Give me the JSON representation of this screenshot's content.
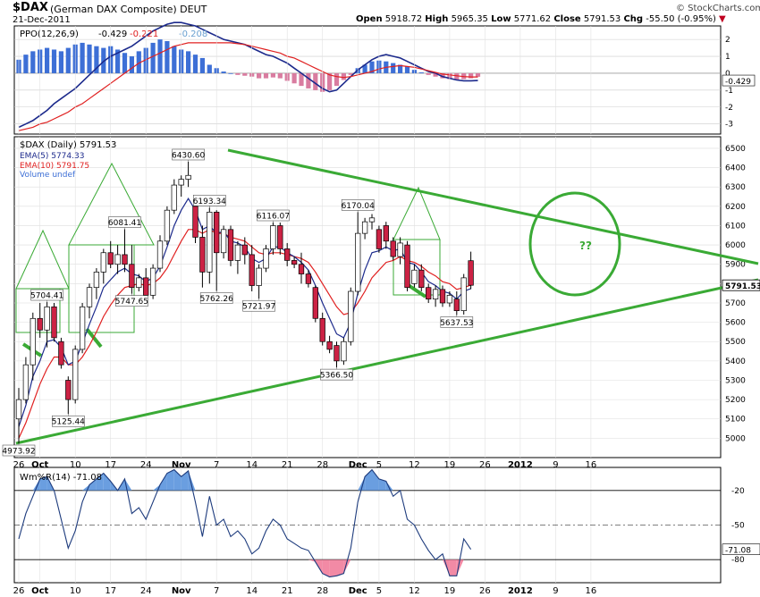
{
  "header": {
    "symbol": "$DAX",
    "name": "(German DAX Composite)",
    "exchange": "DEUT",
    "date": "21-Dec-2011",
    "brand": "© StockCharts.com",
    "open_label": "Open",
    "open": "5918.72",
    "high_label": "High",
    "high": "5965.35",
    "low_label": "Low",
    "low": "5771.62",
    "close_label": "Close",
    "close": "5791.53",
    "chg_label": "Chg",
    "chg": "-55.50 (-0.95%)"
  },
  "colors": {
    "up": "#ffffff",
    "down": "#cc2244",
    "ema5": "#1c2a8c",
    "ema10": "#e02020",
    "trend": "#3aaa35",
    "ppo_pos": "#3d6fd6",
    "ppo_neg": "#d97ca0",
    "will_pos": "#6a9ee0",
    "will_neg": "#f28aa5"
  },
  "chart_data": [
    {
      "type": "bar",
      "panel": "ppo",
      "legend": [
        "PPO(12,26,9)",
        "-0.429",
        "-0.221",
        "-0.208"
      ],
      "value_label": "-0.429",
      "yticks": [
        -3,
        -2,
        -1,
        0,
        1,
        2
      ],
      "ylim": [
        -3.6,
        2.8
      ],
      "histogram": [
        0.8,
        1.1,
        1.3,
        1.4,
        1.5,
        1.4,
        1.3,
        1.5,
        1.7,
        1.8,
        1.7,
        1.6,
        1.5,
        1.6,
        1.4,
        1.2,
        1.0,
        1.3,
        1.5,
        1.8,
        2.0,
        1.9,
        1.6,
        1.4,
        1.3,
        1.1,
        0.9,
        0.5,
        0.3,
        0.1,
        0.0,
        -0.1,
        -0.15,
        -0.2,
        -0.3,
        -0.3,
        -0.25,
        -0.3,
        -0.45,
        -0.6,
        -0.75,
        -0.9,
        -1.0,
        -1.1,
        -1.0,
        -0.75,
        -0.4,
        -0.1,
        0.3,
        0.5,
        0.7,
        0.75,
        0.7,
        0.6,
        0.5,
        0.4,
        0.2,
        0.05,
        -0.1,
        -0.2,
        -0.3,
        -0.35,
        -0.4,
        -0.35,
        -0.3,
        -0.21
      ],
      "ppo_line": [
        -3.2,
        -3.0,
        -2.8,
        -2.5,
        -2.2,
        -1.8,
        -1.5,
        -1.2,
        -0.9,
        -0.5,
        -0.1,
        0.3,
        0.7,
        1.0,
        1.2,
        1.4,
        1.6,
        1.9,
        2.2,
        2.5,
        2.7,
        2.9,
        3.0,
        3.0,
        2.9,
        2.8,
        2.6,
        2.4,
        2.2,
        2.0,
        1.9,
        1.8,
        1.7,
        1.5,
        1.3,
        1.1,
        1.0,
        0.8,
        0.6,
        0.3,
        0.0,
        -0.3,
        -0.6,
        -0.9,
        -1.1,
        -1.0,
        -0.6,
        -0.2,
        0.2,
        0.5,
        0.8,
        1.0,
        1.1,
        1.0,
        0.9,
        0.7,
        0.5,
        0.3,
        0.1,
        0.0,
        -0.2,
        -0.3,
        -0.4,
        -0.45,
        -0.45,
        -0.43
      ],
      "signal_line": [
        -3.4,
        -3.3,
        -3.2,
        -3.0,
        -2.9,
        -2.7,
        -2.5,
        -2.3,
        -2.0,
        -1.8,
        -1.5,
        -1.2,
        -0.9,
        -0.6,
        -0.3,
        0.0,
        0.3,
        0.6,
        0.8,
        1.0,
        1.2,
        1.4,
        1.6,
        1.7,
        1.8,
        1.8,
        1.8,
        1.8,
        1.8,
        1.8,
        1.8,
        1.75,
        1.7,
        1.6,
        1.5,
        1.4,
        1.3,
        1.2,
        1.0,
        0.9,
        0.7,
        0.5,
        0.3,
        0.1,
        -0.1,
        -0.2,
        -0.25,
        -0.2,
        -0.1,
        0.0,
        0.1,
        0.25,
        0.35,
        0.4,
        0.45,
        0.4,
        0.35,
        0.25,
        0.15,
        0.05,
        -0.05,
        -0.1,
        -0.15,
        -0.2,
        -0.22,
        -0.22
      ]
    },
    {
      "type": "line",
      "panel": "price",
      "legend_title": "$DAX (Daily) 5791.53",
      "legend_ema5": "EMA(5) 5774.33",
      "legend_ema10": "EMA(10) 5791.75",
      "legend_volume": "Volume undef",
      "last_price_label": "5791.53",
      "ylim": [
        4900,
        6560
      ],
      "yticks": [
        5000,
        5100,
        5200,
        5300,
        5400,
        5500,
        5600,
        5700,
        5800,
        5900,
        6000,
        6100,
        6200,
        6300,
        6400,
        6500
      ],
      "candles": [
        [
          5100,
          5260,
          4973.92,
          5200
        ],
        [
          5200,
          5420,
          5180,
          5380
        ],
        [
          5380,
          5650,
          5300,
          5620
        ],
        [
          5620,
          5700,
          5520,
          5560
        ],
        [
          5560,
          5704.41,
          5470,
          5680
        ],
        [
          5680,
          5700,
          5500,
          5520
        ],
        [
          5500,
          5520,
          5360,
          5380
        ],
        [
          5300,
          5320,
          5125.44,
          5200
        ],
        [
          5200,
          5480,
          5180,
          5460
        ],
        [
          5460,
          5700,
          5440,
          5680
        ],
        [
          5680,
          5800,
          5620,
          5780
        ],
        [
          5780,
          5880,
          5720,
          5860
        ],
        [
          5860,
          5980,
          5800,
          5960
        ],
        [
          5960,
          6020,
          5880,
          5900
        ],
        [
          5900,
          6000,
          5850,
          5950
        ],
        [
          5950,
          6081.41,
          5860,
          5900
        ],
        [
          5900,
          6000,
          5747.65,
          5780
        ],
        [
          5780,
          5850,
          5760,
          5830
        ],
        [
          5830,
          5880,
          5720,
          5740
        ],
        [
          5740,
          5900,
          5720,
          5880
        ],
        [
          5880,
          6050,
          5860,
          6020
        ],
        [
          6020,
          6200,
          6000,
          6180
        ],
        [
          6180,
          6340,
          6160,
          6310
        ],
        [
          6310,
          6360,
          6250,
          6340
        ],
        [
          6340,
          6430.6,
          6300,
          6360
        ],
        [
          6200,
          6230,
          6010,
          6040
        ],
        [
          6040,
          6100,
          5780,
          5860
        ],
        [
          5860,
          6193.34,
          5800,
          6170
        ],
        [
          6170,
          6180,
          5762.26,
          5960
        ],
        [
          5960,
          6100,
          5930,
          6080
        ],
        [
          6080,
          6100,
          5890,
          5920
        ],
        [
          5920,
          6020,
          5850,
          6000
        ],
        [
          6000,
          6040,
          5900,
          5950
        ],
        [
          5950,
          6000,
          5760,
          5790
        ],
        [
          5790,
          5900,
          5721.97,
          5880
        ],
        [
          5880,
          6000,
          5860,
          5980
        ],
        [
          5980,
          6116.07,
          5950,
          6100
        ],
        [
          6100,
          6116,
          5950,
          5980
        ],
        [
          5980,
          6010,
          5890,
          5920
        ],
        [
          5920,
          5940,
          5880,
          5900
        ],
        [
          5900,
          5960,
          5800,
          5850
        ],
        [
          5850,
          5870,
          5780,
          5800
        ],
        [
          5780,
          5790,
          5600,
          5620
        ],
        [
          5620,
          5650,
          5480,
          5500
        ],
        [
          5500,
          5530,
          5440,
          5460
        ],
        [
          5480,
          5500,
          5366.5,
          5400
        ],
        [
          5400,
          5520,
          5380,
          5500
        ],
        [
          5500,
          5780,
          5480,
          5760
        ],
        [
          5760,
          6170.04,
          5740,
          6060
        ],
        [
          6060,
          6140,
          6030,
          6120
        ],
        [
          6120,
          6160,
          6080,
          6140
        ],
        [
          6080,
          6100,
          5960,
          5980
        ],
        [
          6100,
          6120,
          5980,
          6020
        ],
        [
          6020,
          6040,
          5920,
          5940
        ],
        [
          5940,
          6040,
          5900,
          6010
        ],
        [
          6000,
          6020,
          5760,
          5780
        ],
        [
          5800,
          5900,
          5780,
          5870
        ],
        [
          5870,
          5900,
          5760,
          5780
        ],
        [
          5780,
          5800,
          5700,
          5720
        ],
        [
          5720,
          5790,
          5680,
          5770
        ],
        [
          5770,
          5790,
          5680,
          5700
        ],
        [
          5700,
          5760,
          5680,
          5740
        ],
        [
          5720,
          5760,
          5637.53,
          5660
        ],
        [
          5660,
          5850,
          5640,
          5830
        ],
        [
          5918.72,
          5965.35,
          5771.62,
          5791.53
        ]
      ],
      "ema5": [
        5060,
        5170,
        5320,
        5400,
        5500,
        5510,
        5470,
        5380,
        5400,
        5490,
        5590,
        5680,
        5780,
        5820,
        5860,
        5880,
        5850,
        5840,
        5810,
        5830,
        5890,
        5990,
        6100,
        6180,
        6240,
        6180,
        6080,
        6100,
        6060,
        6070,
        6020,
        6010,
        5990,
        5930,
        5910,
        5930,
        5990,
        5990,
        5960,
        5940,
        5910,
        5870,
        5790,
        5700,
        5620,
        5540,
        5520,
        5600,
        5750,
        5870,
        5960,
        5970,
        5990,
        5970,
        5980,
        5910,
        5900,
        5860,
        5810,
        5790,
        5760,
        5750,
        5720,
        5760,
        5774.33
      ],
      "ema10": [
        5000,
        5080,
        5180,
        5280,
        5360,
        5420,
        5420,
        5380,
        5380,
        5420,
        5480,
        5550,
        5630,
        5690,
        5740,
        5780,
        5790,
        5800,
        5790,
        5800,
        5830,
        5880,
        5950,
        6020,
        6080,
        6080,
        6060,
        6080,
        6060,
        6060,
        6040,
        6030,
        6020,
        5990,
        5960,
        5950,
        5960,
        5960,
        5950,
        5940,
        5930,
        5910,
        5860,
        5800,
        5740,
        5680,
        5640,
        5650,
        5700,
        5760,
        5830,
        5870,
        5910,
        5920,
        5940,
        5920,
        5910,
        5890,
        5860,
        5840,
        5810,
        5800,
        5770,
        5780,
        5791.75
      ],
      "price_labels": [
        {
          "i": 0,
          "v": 4973.92,
          "text": "4973.92",
          "pos": "below"
        },
        {
          "i": 4,
          "v": 5704.41,
          "text": "5704.41",
          "pos": "above"
        },
        {
          "i": 7,
          "v": 5125.44,
          "text": "5125.44",
          "pos": "below"
        },
        {
          "i": 15,
          "v": 6081.41,
          "text": "6081.41",
          "pos": "above"
        },
        {
          "i": 16,
          "v": 5747.65,
          "text": "5747.65",
          "pos": "below"
        },
        {
          "i": 24,
          "v": 6430.6,
          "text": "6430.60",
          "pos": "above"
        },
        {
          "i": 27,
          "v": 6193.34,
          "text": "6193.34",
          "pos": "above"
        },
        {
          "i": 28,
          "v": 5762.26,
          "text": "5762.26",
          "pos": "below"
        },
        {
          "i": 34,
          "v": 5721.97,
          "text": "5721.97",
          "pos": "below"
        },
        {
          "i": 36,
          "v": 6116.07,
          "text": "6116.07",
          "pos": "above"
        },
        {
          "i": 45,
          "v": 5366.5,
          "text": "5366.50",
          "pos": "below"
        },
        {
          "i": 48,
          "v": 6170.04,
          "text": "6170.04",
          "pos": "above"
        },
        {
          "i": 62,
          "v": 5637.53,
          "text": "5637.53",
          "pos": "below"
        }
      ],
      "annotation_text": "??"
    },
    {
      "type": "line",
      "panel": "williams",
      "legend": "Wm%R(14) -71.08",
      "value_label": "-71.08",
      "yticks": [
        -20,
        -50,
        -80
      ],
      "ylim": [
        -100,
        0
      ],
      "values": [
        -62,
        -40,
        -25,
        -10,
        -8,
        -20,
        -45,
        -70,
        -55,
        -30,
        -15,
        -10,
        -5,
        -12,
        -20,
        -10,
        -40,
        -35,
        -45,
        -30,
        -15,
        -5,
        -2,
        -8,
        -3,
        -30,
        -60,
        -25,
        -50,
        -45,
        -60,
        -55,
        -62,
        -75,
        -70,
        -55,
        -45,
        -50,
        -62,
        -66,
        -70,
        -72,
        -82,
        -92,
        -95,
        -94,
        -92,
        -70,
        -30,
        -8,
        -2,
        -10,
        -12,
        -25,
        -20,
        -45,
        -50,
        -62,
        -72,
        -80,
        -75,
        -94,
        -94,
        -62,
        -71.08
      ]
    }
  ],
  "x_axis": {
    "labels": [
      "26",
      "Oct",
      "10",
      "17",
      "24",
      "Nov",
      "7",
      "14",
      "21",
      "28",
      "Dec",
      "5",
      "12",
      "19",
      "26",
      "2012",
      "9",
      "16"
    ],
    "bold": [
      "Oct",
      "Nov",
      "Dec",
      "2012"
    ]
  }
}
